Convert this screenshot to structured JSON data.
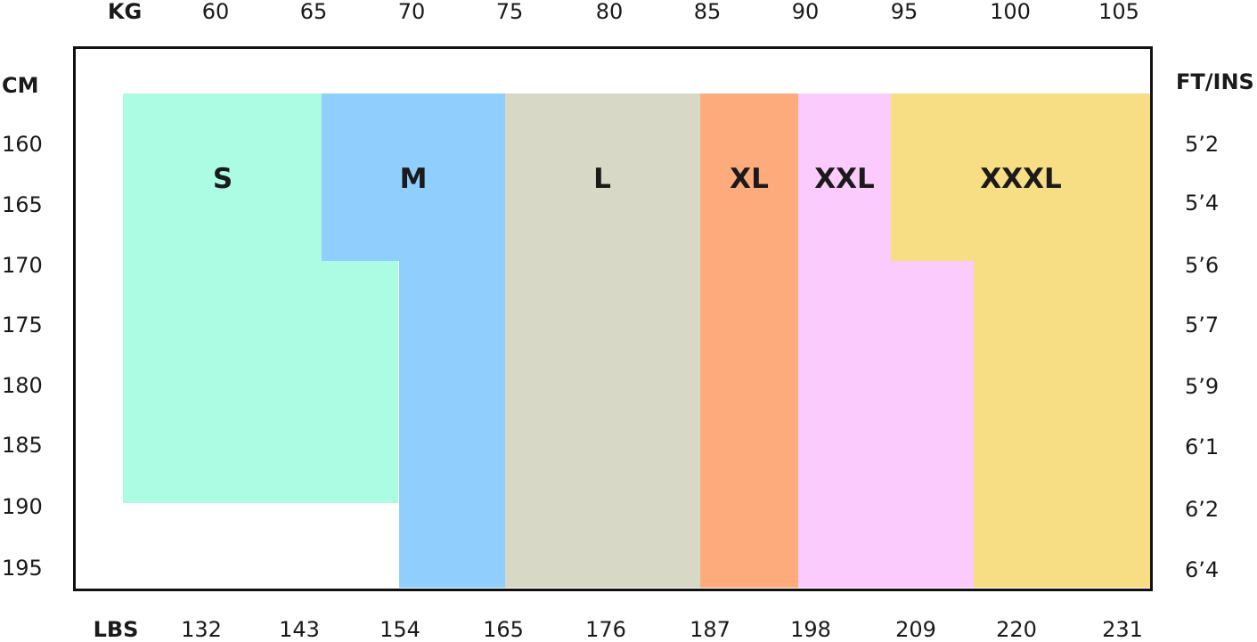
{
  "chart_data": {
    "type": "heatmap",
    "title": "",
    "x_top": {
      "label": "KG",
      "ticks": [
        "60",
        "65",
        "70",
        "75",
        "80",
        "85",
        "90",
        "95",
        "100",
        "105"
      ]
    },
    "x_bottom": {
      "label": "LBS",
      "ticks": [
        "132",
        "143",
        "154",
        "165",
        "176",
        "187",
        "198",
        "209",
        "220",
        "231"
      ]
    },
    "y_left": {
      "label": "CM",
      "ticks": [
        "160",
        "165",
        "170",
        "175",
        "180",
        "185",
        "190",
        "195"
      ]
    },
    "y_right": {
      "label": "FT/INS",
      "ticks": [
        "5’2",
        "5’4",
        "5’6",
        "5’7",
        "5’9",
        "6’1",
        "6’2",
        "6’4"
      ]
    },
    "sizes": [
      {
        "name": "S",
        "color": "#abfce3",
        "regions": [
          {
            "kg": [
              55.3,
              65.4
            ],
            "cm": [
              155.8,
              169.6
            ]
          },
          {
            "kg": [
              55.3,
              69.3
            ],
            "cm": [
              169.6,
              189.6
            ]
          }
        ]
      },
      {
        "name": "M",
        "color": "#8fcefd",
        "regions": [
          {
            "kg": [
              65.4,
              74.7
            ],
            "cm": [
              155.8,
              169.6
            ]
          },
          {
            "kg": [
              69.3,
              74.7
            ],
            "cm": [
              169.6,
              196.6
            ]
          }
        ]
      },
      {
        "name": "L",
        "color": "#d8d8c6",
        "regions": [
          {
            "kg": [
              74.7,
              84.6
            ],
            "cm": [
              155.8,
              196.6
            ]
          }
        ]
      },
      {
        "name": "XL",
        "color": "#fdab7d",
        "regions": [
          {
            "kg": [
              84.6,
              89.6
            ],
            "cm": [
              155.8,
              196.6
            ]
          }
        ]
      },
      {
        "name": "XXL",
        "color": "#fccbfd",
        "regions": [
          {
            "kg": [
              89.6,
              94.3
            ],
            "cm": [
              155.8,
              169.6
            ]
          },
          {
            "kg": [
              89.6,
              98.5
            ],
            "cm": [
              169.6,
              196.6
            ]
          }
        ]
      },
      {
        "name": "XXXL",
        "color": "#f7de84",
        "regions": [
          {
            "kg": [
              94.3,
              109.5
            ],
            "cm": [
              155.8,
              169.6
            ]
          },
          {
            "kg": [
              98.5,
              109.5
            ],
            "cm": [
              169.6,
              196.6
            ]
          }
        ]
      }
    ]
  }
}
